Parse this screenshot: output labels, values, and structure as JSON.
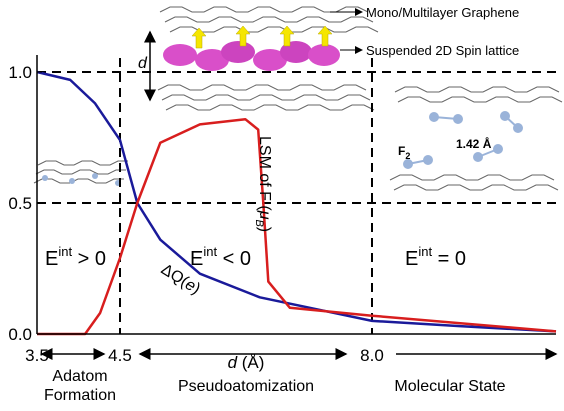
{
  "chart_data": {
    "type": "line",
    "xlabel": {
      "italic": "d",
      "rest": " (Å)"
    },
    "ylim": [
      0,
      1
    ],
    "yticks": [
      {
        "value": 0,
        "label": "0.0"
      },
      {
        "value": 0.5,
        "label": "0.5"
      },
      {
        "value": 1,
        "label": "1.0"
      }
    ],
    "xlim": [
      3.5,
      10.56
    ],
    "xticks": [
      3.5,
      4.5,
      {
        "value": 8,
        "label": "8.0"
      }
    ],
    "hlines": [
      1,
      0.5
    ],
    "vlines": [
      4.5,
      8
    ],
    "series": [
      {
        "name": "ΔQ(e)",
        "color": "#1a1a9a",
        "x": [
          3.5,
          3.9,
          4.2,
          4.5,
          4.74,
          5.06,
          5.61,
          6.44,
          8.0,
          9.22,
          10.56
        ],
        "values": [
          1.0,
          0.97,
          0.88,
          0.74,
          0.5,
          0.36,
          0.23,
          0.14,
          0.05,
          0.03,
          0.01
        ]
      },
      {
        "name": "LSM of F",
        "color": "#d81e1e",
        "x": [
          3.5,
          4.08,
          4.26,
          4.5,
          4.74,
          5.06,
          5.61,
          6.24,
          6.42,
          6.49,
          6.56,
          6.86,
          8.0,
          10.56
        ],
        "values": [
          0,
          0,
          0.08,
          0.29,
          0.5,
          0.73,
          0.8,
          0.82,
          0.78,
          0.5,
          0.2,
          0.1,
          0.07,
          0.01
        ]
      }
    ],
    "curve_labels": {
      "lsm": {
        "text": "LSM of F (",
        "symbol": "μ",
        "sub": "B",
        "close": ")"
      },
      "dq": {
        "text": "ΔQ(",
        "italic": "e",
        "close": ")"
      }
    },
    "regions": [
      {
        "base": "E",
        "sup": "int",
        "rest": " > 0"
      },
      {
        "base": "E",
        "sup": "int",
        "rest": " < 0"
      },
      {
        "base": "E",
        "sup": "int",
        "rest": " = 0"
      }
    ],
    "region_names": [
      [
        "Adatom",
        "Formation"
      ],
      [
        "Pseudoatomization"
      ],
      [
        "Molecular State"
      ]
    ],
    "inset": {
      "graphene": "Mono/Multilayer Graphene",
      "spin": "Suspended 2D Spin lattice",
      "d": "d",
      "f2": {
        "base": "F",
        "sub": "2"
      },
      "bond": "1.42 Å"
    }
  }
}
